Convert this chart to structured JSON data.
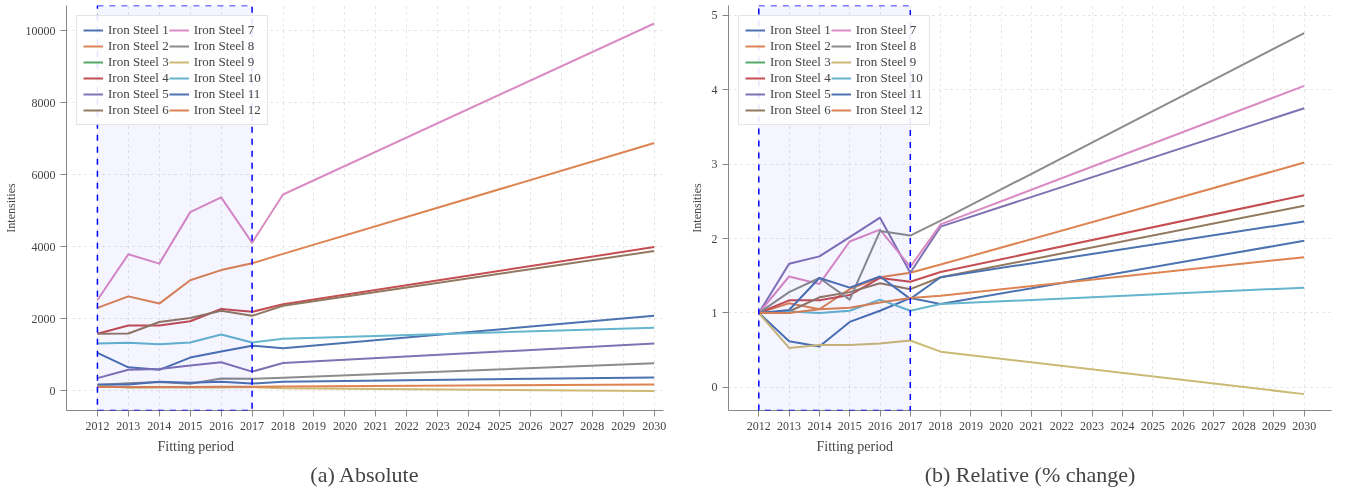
{
  "chart_data": [
    {
      "type": "line",
      "title": "(a) Absolute",
      "ylabel": "Intensities",
      "x": [
        2012,
        2013,
        2014,
        2015,
        2016,
        2017,
        2018,
        2030
      ],
      "xlim": [
        2011,
        2030.3
      ],
      "xticks": [
        2012,
        2013,
        2014,
        2015,
        2016,
        2017,
        2018,
        2019,
        2020,
        2021,
        2022,
        2023,
        2024,
        2025,
        2026,
        2027,
        2028,
        2029,
        2030
      ],
      "ylim": [
        -550,
        10700
      ],
      "yticks": [
        0,
        2000,
        4000,
        6000,
        8000,
        10000
      ],
      "grid": true,
      "legend": "top left",
      "line_style": "solid",
      "bands": [
        {
          "axis": "x",
          "from": 2012,
          "to": 2017,
          "label": "Fitting period",
          "color": "#0000ff"
        }
      ],
      "series": [
        {
          "name": "Iron Steel 1",
          "color": "#4c72b0",
          "values": [
            1050,
            650,
            580,
            920,
            1090,
            1250,
            1180,
            2080
          ]
        },
        {
          "name": "Iron Steel 2",
          "color": "#dd8452",
          "values": [
            2300,
            2620,
            2420,
            3070,
            3350,
            3540,
            3800,
            6880
          ]
        },
        {
          "name": "Iron Steel 3",
          "color": "#55a868",
          "values": [
            null,
            null,
            null,
            null,
            null,
            null,
            null,
            null
          ]
        },
        {
          "name": "Iron Steel 4",
          "color": "#c44e52",
          "values": [
            1580,
            1810,
            1810,
            1930,
            2270,
            2190,
            2400,
            3990
          ]
        },
        {
          "name": "Iron Steel 5",
          "color": "#8172b3",
          "values": [
            350,
            580,
            600,
            700,
            790,
            530,
            770,
            1310
          ]
        },
        {
          "name": "Iron Steel 6",
          "color": "#937860",
          "values": [
            1580,
            1590,
            1910,
            2020,
            2220,
            2080,
            2360,
            3880
          ]
        },
        {
          "name": "Iron Steel 7",
          "color": "#da8bc3",
          "values": [
            2520,
            3790,
            3530,
            4960,
            5370,
            4110,
            5450,
            10200
          ]
        },
        {
          "name": "Iron Steel 8",
          "color": "#8c8c8c",
          "values": [
            160,
            210,
            240,
            190,
            340,
            330,
            360,
            760
          ]
        },
        {
          "name": "Iron Steel 9",
          "color": "#ccb974",
          "values": [
            150,
            80,
            90,
            90,
            90,
            100,
            70,
            -10
          ]
        },
        {
          "name": "Iron Steel 10",
          "color": "#64b5cd",
          "values": [
            1310,
            1330,
            1290,
            1340,
            1560,
            1340,
            1440,
            1750
          ]
        },
        {
          "name": "Iron Steel 11",
          "color": "#4c72b0",
          "values": [
            170,
            170,
            250,
            220,
            250,
            200,
            250,
            370
          ]
        },
        {
          "name": "Iron Steel 12",
          "color": "#dd8452",
          "values": [
            100,
            100,
            100,
            100,
            110,
            110,
            120,
            170
          ]
        }
      ]
    },
    {
      "type": "line",
      "title": "(b) Relative (% change)",
      "ylabel": "Intensities",
      "x": [
        2012,
        2013,
        2014,
        2015,
        2016,
        2017,
        2018,
        2030
      ],
      "xlim": [
        2011,
        2030.9
      ],
      "xticks": [
        2012,
        2013,
        2014,
        2015,
        2016,
        2017,
        2018,
        2019,
        2020,
        2021,
        2022,
        2023,
        2024,
        2025,
        2026,
        2027,
        2028,
        2029,
        2030
      ],
      "ylim": [
        -0.31,
        5.13
      ],
      "yticks": [
        0,
        1,
        2,
        3,
        4,
        5
      ],
      "grid": true,
      "legend": "top left",
      "line_style": "solid",
      "bands": [
        {
          "axis": "x",
          "from": 2012,
          "to": 2017,
          "label": "Fitting period",
          "color": "#0000ff"
        }
      ],
      "series": [
        {
          "name": "Iron Steel 1",
          "color": "#4c72b0",
          "values": [
            1,
            0.62,
            0.55,
            0.88,
            1.03,
            1.2,
            1.12,
            1.97
          ]
        },
        {
          "name": "Iron Steel 2",
          "color": "#dd8452",
          "values": [
            1,
            1.13,
            1.05,
            1.32,
            1.48,
            1.54,
            1.65,
            3.02
          ]
        },
        {
          "name": "Iron Steel 3",
          "color": "#55a868",
          "values": [
            null,
            null,
            null,
            null,
            null,
            null,
            null,
            null
          ]
        },
        {
          "name": "Iron Steel 4",
          "color": "#c44e52",
          "values": [
            1,
            1.17,
            1.17,
            1.24,
            1.47,
            1.42,
            1.55,
            2.58
          ]
        },
        {
          "name": "Iron Steel 5",
          "color": "#8172b3",
          "values": [
            1,
            1.66,
            1.76,
            2.02,
            2.28,
            1.54,
            2.16,
            3.75
          ]
        },
        {
          "name": "Iron Steel 6",
          "color": "#937860",
          "values": [
            1,
            1.02,
            1.21,
            1.28,
            1.4,
            1.32,
            1.48,
            2.44
          ]
        },
        {
          "name": "Iron Steel 7",
          "color": "#da8bc3",
          "values": [
            1,
            1.49,
            1.39,
            1.96,
            2.12,
            1.62,
            2.19,
            4.05
          ]
        },
        {
          "name": "Iron Steel 8",
          "color": "#8c8c8c",
          "values": [
            1,
            1.28,
            1.47,
            1.18,
            2.1,
            2.04,
            2.24,
            4.76
          ]
        },
        {
          "name": "Iron Steel 9",
          "color": "#ccb974",
          "values": [
            1,
            0.53,
            0.57,
            0.57,
            0.59,
            0.63,
            0.48,
            -0.09
          ]
        },
        {
          "name": "Iron Steel 10",
          "color": "#64b5cd",
          "values": [
            1,
            1.02,
            1.0,
            1.03,
            1.18,
            1.03,
            1.12,
            1.34
          ]
        },
        {
          "name": "Iron Steel 11",
          "color": "#4c72b0",
          "values": [
            1,
            1.04,
            1.47,
            1.34,
            1.49,
            1.19,
            1.48,
            2.23
          ]
        },
        {
          "name": "Iron Steel 12",
          "color": "#dd8452",
          "values": [
            1,
            1.0,
            1.05,
            1.07,
            1.14,
            1.2,
            1.23,
            1.75
          ]
        }
      ]
    }
  ]
}
